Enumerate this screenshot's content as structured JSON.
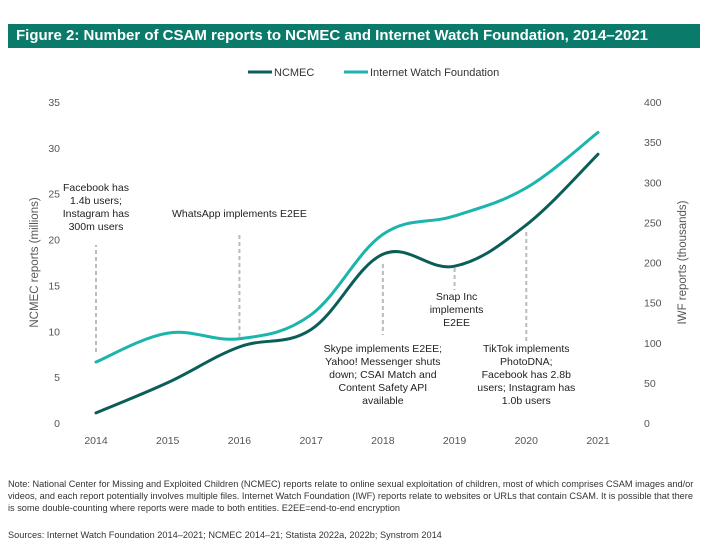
{
  "title": "Figure 2: Number of CSAM reports to NCMEC and Internet Watch Foundation, 2014–2021",
  "colors": {
    "title_bg": "#0a7a6b",
    "ncmec": "#0b5e58",
    "iwf": "#1bb5ad",
    "annotation_line": "#bbbbbb",
    "axis_text": "#555555"
  },
  "chart_data": {
    "type": "line",
    "x": [
      2014,
      2015,
      2016,
      2017,
      2018,
      2019,
      2020,
      2021
    ],
    "series": [
      {
        "name": "NCMEC",
        "axis": "left",
        "color": "#0b5e58",
        "values": [
          1.1,
          4.4,
          8.3,
          10.2,
          18.4,
          17.1,
          21.6,
          29.3
        ]
      },
      {
        "name": "Internet Watch Foundation",
        "axis": "right",
        "color": "#1bb5ad",
        "values": [
          76,
          112,
          105,
          135,
          235,
          258,
          293,
          362
        ]
      }
    ],
    "ylabel": "NCMEC reports (millions)",
    "y2label": "IWF reports (thousands)",
    "ylim": [
      0,
      35
    ],
    "y2lim": [
      0,
      400
    ],
    "yticks": [
      0,
      5,
      10,
      15,
      20,
      25,
      30,
      35
    ],
    "y2ticks": [
      0,
      50,
      100,
      150,
      200,
      250,
      300,
      350,
      400
    ],
    "legend_position": "top-center",
    "grid": false,
    "annotations": [
      {
        "x": 2014,
        "text": [
          "Facebook has",
          "1.4b users;",
          "Instagram has",
          "300m users"
        ]
      },
      {
        "x": 2016,
        "text": [
          "WhatsApp implements E2EE"
        ]
      },
      {
        "x": 2018,
        "text": [
          "Skype implements E2EE;",
          "Yahoo! Messenger shuts",
          "down; CSAI Match and",
          "Content Safety API",
          "available"
        ]
      },
      {
        "x": 2019,
        "text": [
          "Snap Inc",
          "implements",
          "E2EE"
        ]
      },
      {
        "x": 2020,
        "text": [
          "TikTok implements",
          "PhotoDNA;",
          "Facebook has 2.8b",
          "users; Instagram has",
          "1.0b users"
        ]
      }
    ]
  },
  "note": "Note: National Center for Missing and Exploited Children (NCMEC) reports relate to online sexual exploitation of children, most of which comprises CSAM images and/or videos, and each report potentially involves multiple files. Internet Watch Foundation (IWF) reports relate to websites or URLs that contain CSAM. It is possible that there is some double-counting where reports were made to both entities. E2EE=end-to-end encryption",
  "sources": "Sources: Internet Watch Foundation 2014–2021; NCMEC 2014–21; Statista 2022a, 2022b; Synstrom 2014"
}
